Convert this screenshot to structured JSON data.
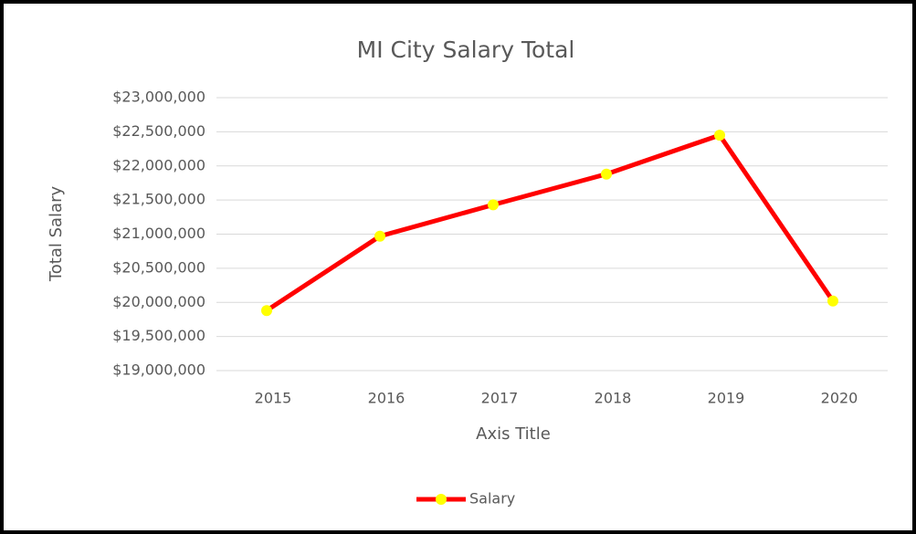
{
  "chart_data": {
    "type": "line",
    "title": "MI City Salary Total",
    "x_label": "Axis Title",
    "y_label": "Total Salary",
    "categories": [
      "2015",
      "2016",
      "2017",
      "2018",
      "2019",
      "2020"
    ],
    "series": [
      {
        "name": "Salary",
        "color": "#ff0000",
        "marker_color": "#ffff00",
        "values": [
          19880000,
          20970000,
          21430000,
          21880000,
          22450000,
          20020000
        ]
      }
    ],
    "ylim": [
      19000000,
      23000000
    ],
    "yticks": [
      {
        "value": 19000000,
        "label": "$19,000,000"
      },
      {
        "value": 19500000,
        "label": "$19,500,000"
      },
      {
        "value": 20000000,
        "label": "$20,000,000"
      },
      {
        "value": 20500000,
        "label": "$20,500,000"
      },
      {
        "value": 21000000,
        "label": "$21,000,000"
      },
      {
        "value": 21500000,
        "label": "$21,500,000"
      },
      {
        "value": 22000000,
        "label": "$22,000,000"
      },
      {
        "value": 22500000,
        "label": "$22,500,000"
      },
      {
        "value": 23000000,
        "label": "$23,000,000"
      }
    ],
    "grid": true,
    "legend": "bottom"
  }
}
